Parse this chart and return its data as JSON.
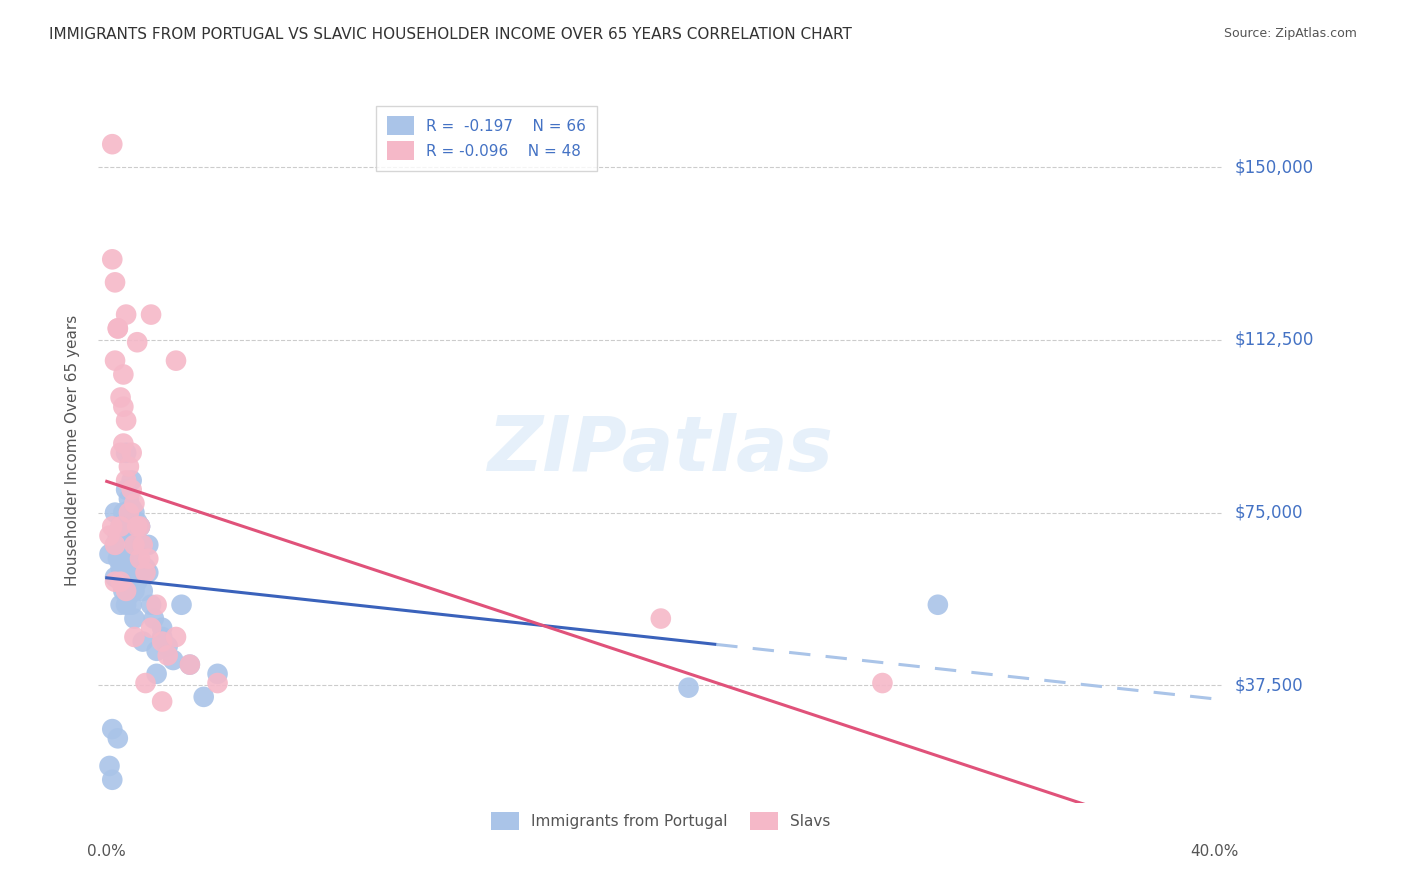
{
  "title": "IMMIGRANTS FROM PORTUGAL VS SLAVIC HOUSEHOLDER INCOME OVER 65 YEARS CORRELATION CHART",
  "source": "Source: ZipAtlas.com",
  "ylabel": "Householder Income Over 65 years",
  "ytick_labels": [
    "$37,500",
    "$75,000",
    "$112,500",
    "$150,000"
  ],
  "ytick_values": [
    37500,
    75000,
    112500,
    150000
  ],
  "ylim": [
    12000,
    165000
  ],
  "xlim": [
    -0.003,
    0.403
  ],
  "watermark": "ZIPatlas",
  "legend_blue_r": "R =  -0.197",
  "legend_blue_n": "N = 66",
  "legend_pink_r": "R = -0.096",
  "legend_pink_n": "N = 48",
  "blue_scatter_color": "#aac4e8",
  "pink_scatter_color": "#f5b8c8",
  "blue_line_color": "#3a62bb",
  "pink_line_color": "#e0527a",
  "grid_color": "#cccccc",
  "title_color": "#333333",
  "label_color": "#555555",
  "right_label_color": "#4472c4",
  "portugal_x": [
    0.001,
    0.002,
    0.003,
    0.003,
    0.004,
    0.004,
    0.005,
    0.005,
    0.005,
    0.005,
    0.006,
    0.006,
    0.006,
    0.006,
    0.007,
    0.007,
    0.007,
    0.007,
    0.007,
    0.008,
    0.008,
    0.008,
    0.008,
    0.009,
    0.009,
    0.009,
    0.009,
    0.01,
    0.01,
    0.01,
    0.01,
    0.011,
    0.011,
    0.011,
    0.012,
    0.012,
    0.013,
    0.013,
    0.014,
    0.015,
    0.016,
    0.017,
    0.018,
    0.02,
    0.022,
    0.024,
    0.027,
    0.03,
    0.035,
    0.04,
    0.002,
    0.004,
    0.007,
    0.009,
    0.012,
    0.015,
    0.02,
    0.21,
    0.3,
    0.001,
    0.003,
    0.005,
    0.008,
    0.01,
    0.013,
    0.018
  ],
  "portugal_y": [
    20000,
    17000,
    75000,
    68000,
    70000,
    65000,
    72000,
    68000,
    63000,
    55000,
    75000,
    70000,
    65000,
    58000,
    80000,
    75000,
    70000,
    62000,
    55000,
    78000,
    73000,
    68000,
    60000,
    76000,
    72000,
    65000,
    55000,
    75000,
    70000,
    62000,
    52000,
    73000,
    68000,
    60000,
    72000,
    62000,
    68000,
    58000,
    63000,
    62000,
    55000,
    52000,
    45000,
    50000,
    46000,
    43000,
    55000,
    42000,
    35000,
    40000,
    28000,
    26000,
    88000,
    82000,
    72000,
    68000,
    48000,
    37000,
    55000,
    66000,
    61000,
    66000,
    57000,
    58000,
    47000,
    40000
  ],
  "slavic_x": [
    0.001,
    0.002,
    0.002,
    0.003,
    0.003,
    0.004,
    0.005,
    0.005,
    0.006,
    0.006,
    0.007,
    0.007,
    0.008,
    0.008,
    0.009,
    0.01,
    0.01,
    0.011,
    0.012,
    0.013,
    0.014,
    0.015,
    0.016,
    0.018,
    0.02,
    0.022,
    0.025,
    0.03,
    0.2,
    0.28,
    0.004,
    0.006,
    0.009,
    0.012,
    0.002,
    0.007,
    0.011,
    0.016,
    0.025,
    0.04,
    0.003,
    0.003,
    0.005,
    0.005,
    0.007,
    0.01,
    0.014,
    0.02
  ],
  "slavic_y": [
    70000,
    130000,
    72000,
    125000,
    108000,
    115000,
    100000,
    88000,
    105000,
    90000,
    95000,
    82000,
    85000,
    75000,
    80000,
    77000,
    68000,
    72000,
    65000,
    68000,
    62000,
    65000,
    50000,
    55000,
    47000,
    44000,
    48000,
    42000,
    52000,
    38000,
    115000,
    98000,
    88000,
    72000,
    155000,
    118000,
    112000,
    118000,
    108000,
    38000,
    68000,
    60000,
    72000,
    60000,
    58000,
    48000,
    38000,
    34000
  ]
}
